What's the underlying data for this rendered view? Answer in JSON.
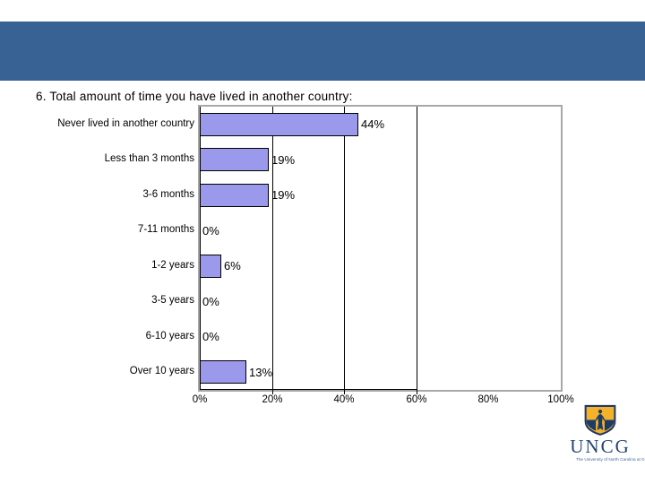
{
  "slide": {
    "background": "#ffffff",
    "band_color": "#386293"
  },
  "chart_data": {
    "type": "bar",
    "orientation": "horizontal",
    "title": "6. Total amount of time you have lived in another country:",
    "categories": [
      "Never lived in another country",
      "Less than 3 months",
      "3-6 months",
      "7-11 months",
      "1-2 years",
      "3-5 years",
      "6-10 years",
      "Over 10 years"
    ],
    "values": [
      44,
      19,
      19,
      0,
      6,
      0,
      0,
      13
    ],
    "value_labels": [
      "44%",
      "19%",
      "19%",
      "0%",
      "6%",
      "0%",
      "0%",
      "13%"
    ],
    "x_tick_labels": [
      "0%",
      "20%",
      "40%",
      "60%",
      "80%",
      "100%"
    ],
    "x_tick_values": [
      0,
      20,
      40,
      60,
      80,
      100
    ],
    "xlim": [
      0,
      100
    ],
    "gridline_values": [
      20,
      40,
      60
    ],
    "tick_mark_values": [
      20,
      40,
      60
    ],
    "x_axis_line_extent": 60,
    "grid": "vertical-lines-only",
    "legend": "none",
    "colors": {
      "bar_fill": "#9a99eb",
      "bar_border": "#000000",
      "plot_border": "#a8a8a8",
      "gridline": "#000000",
      "axis": "#000000",
      "text": "#000000"
    }
  },
  "logo": {
    "wordmark": "UNCG",
    "tagline": "The University of North Carolina at Greensboro",
    "colors": {
      "shield_gold": "#f3b229",
      "shield_navy": "#1e3a68",
      "wordmark_navy": "#24466f",
      "tagline_blue": "#44689a"
    }
  }
}
